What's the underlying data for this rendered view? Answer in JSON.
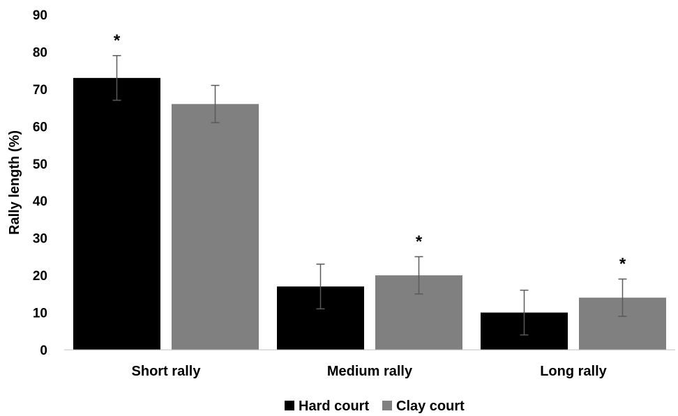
{
  "chart_data": {
    "type": "bar",
    "title": "",
    "xlabel": "",
    "ylabel": "Rally length (%)",
    "ylim": [
      0,
      90
    ],
    "yticks": [
      0,
      10,
      20,
      30,
      40,
      50,
      60,
      70,
      80,
      90
    ],
    "grid": false,
    "legend_position": "bottom",
    "categories": [
      "Short rally",
      "Medium rally",
      "Long rally"
    ],
    "series": [
      {
        "name": "Hard court",
        "color": "#000000",
        "values": [
          73,
          17,
          10
        ],
        "error": [
          6,
          6,
          6
        ],
        "significance": [
          "*",
          "",
          ""
        ]
      },
      {
        "name": "Clay court",
        "color": "#808080",
        "values": [
          66,
          20,
          14
        ],
        "error": [
          5,
          5,
          5
        ],
        "significance": [
          "",
          "*",
          "*"
        ]
      }
    ]
  }
}
